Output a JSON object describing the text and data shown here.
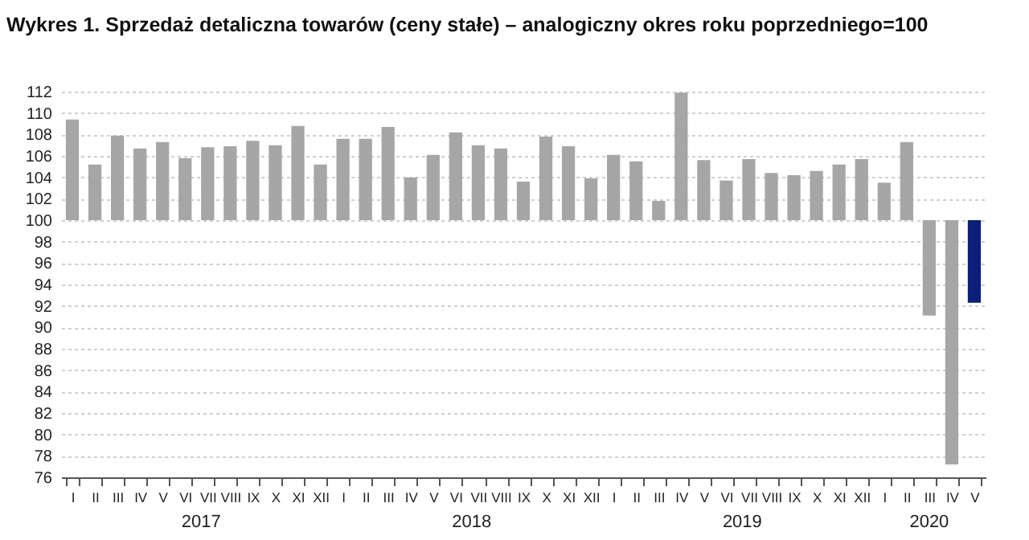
{
  "chart_data": {
    "type": "bar",
    "title": "Wykres 1. Sprzedaż detaliczna towarów (ceny stałe) – analogiczny okres roku poprzedniego=100",
    "categories": [
      "I",
      "II",
      "III",
      "IV",
      "V",
      "VI",
      "VII",
      "VIII",
      "IX",
      "X",
      "XI",
      "XII",
      "I",
      "II",
      "III",
      "IV",
      "V",
      "VI",
      "VII",
      "VIII",
      "IX",
      "X",
      "XI",
      "XII",
      "I",
      "II",
      "III",
      "IV",
      "V",
      "VI",
      "VII",
      "VIII",
      "IX",
      "X",
      "XI",
      "XII",
      "I",
      "II",
      "III",
      "IV",
      "V"
    ],
    "base": [
      100,
      100,
      100,
      100,
      100,
      100,
      100,
      100,
      100,
      100,
      100,
      100,
      100,
      100,
      100,
      100,
      100,
      100,
      100,
      100,
      100,
      100,
      100,
      100,
      100,
      100,
      100,
      100,
      100,
      100,
      100,
      100,
      100,
      100,
      100,
      100,
      100,
      100,
      100,
      100,
      100
    ],
    "values": [
      9.4,
      5.2,
      7.9,
      6.7,
      7.3,
      5.8,
      6.8,
      6.9,
      7.4,
      7.0,
      8.8,
      5.2,
      7.6,
      7.6,
      8.7,
      4.0,
      6.1,
      8.2,
      7.0,
      6.7,
      3.6,
      7.8,
      6.9,
      3.9,
      6.1,
      5.5,
      1.8,
      11.9,
      5.6,
      3.7,
      5.7,
      4.4,
      4.2,
      4.6,
      5.2,
      5.7,
      3.5,
      7.3,
      -8.9,
      -22.8,
      -7.7
    ],
    "colors": [
      "#a6a6a6",
      "#a6a6a6",
      "#a6a6a6",
      "#a6a6a6",
      "#a6a6a6",
      "#a6a6a6",
      "#a6a6a6",
      "#a6a6a6",
      "#a6a6a6",
      "#a6a6a6",
      "#a6a6a6",
      "#a6a6a6",
      "#a6a6a6",
      "#a6a6a6",
      "#a6a6a6",
      "#a6a6a6",
      "#a6a6a6",
      "#a6a6a6",
      "#a6a6a6",
      "#a6a6a6",
      "#a6a6a6",
      "#a6a6a6",
      "#a6a6a6",
      "#a6a6a6",
      "#a6a6a6",
      "#a6a6a6",
      "#a6a6a6",
      "#a6a6a6",
      "#a6a6a6",
      "#a6a6a6",
      "#a6a6a6",
      "#a6a6a6",
      "#a6a6a6",
      "#a6a6a6",
      "#a6a6a6",
      "#a6a6a6",
      "#a6a6a6",
      "#a6a6a6",
      "#a6a6a6",
      "#a6a6a6",
      "#0a1f78"
    ],
    "ylim": [
      76,
      112
    ],
    "yticks": [
      76,
      78,
      80,
      82,
      84,
      86,
      88,
      90,
      92,
      94,
      96,
      98,
      100,
      102,
      104,
      106,
      108,
      110,
      112
    ],
    "grid": "y",
    "annotations": [
      "2017",
      "2018",
      "2019",
      "2020"
    ]
  }
}
